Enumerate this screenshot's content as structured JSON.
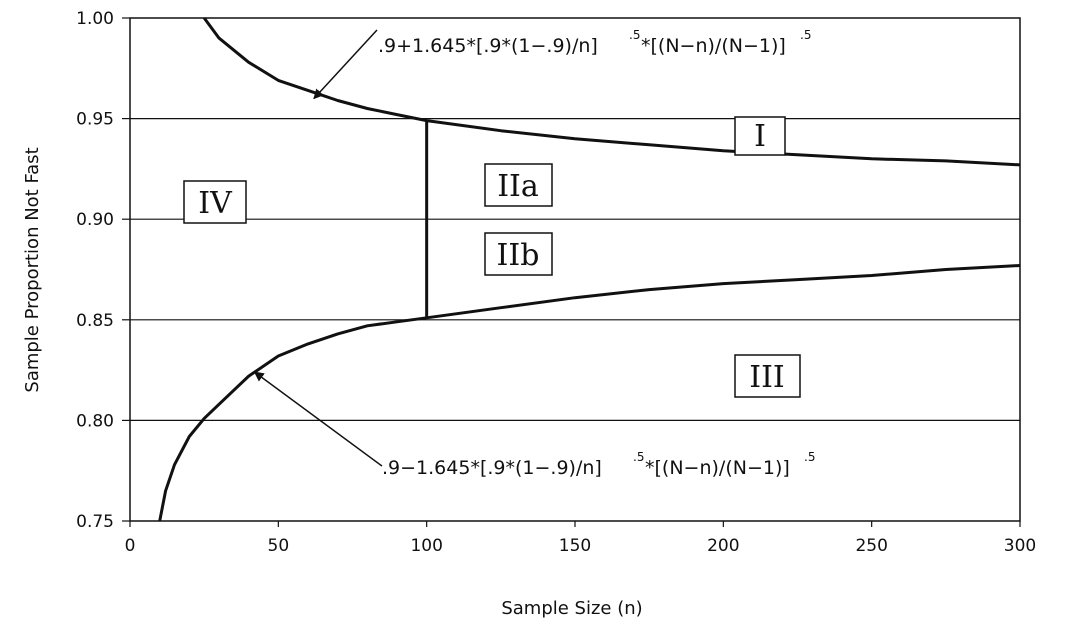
{
  "chart_data": {
    "type": "line",
    "title": "",
    "xlabel": "Sample Size (n)",
    "ylabel": "Sample Proportion Not Fast",
    "xlim": [
      0,
      300
    ],
    "ylim": [
      0.75,
      1.0
    ],
    "xticks": [
      0,
      50,
      100,
      150,
      200,
      250,
      300
    ],
    "xtick_labels": [
      "0",
      "50",
      "100",
      "150",
      "200",
      "250",
      "300"
    ],
    "yticks": [
      0.75,
      0.8,
      0.85,
      0.9,
      0.95,
      1.0
    ],
    "ytick_labels": [
      "0.75",
      "0.80",
      "0.85",
      "0.90",
      "0.95",
      "1.00"
    ],
    "horizontal_gridlines": [
      0.8,
      0.85,
      0.9,
      0.95
    ],
    "series": [
      {
        "x": [
          25,
          30,
          40,
          50,
          60,
          70,
          80,
          90,
          100,
          125,
          150,
          175,
          200,
          225,
          250,
          275,
          300
        ],
        "y": [
          1.0,
          0.99,
          0.978,
          0.969,
          0.964,
          0.959,
          0.955,
          0.952,
          0.949,
          0.944,
          0.94,
          0.937,
          0.934,
          0.932,
          0.93,
          0.929,
          0.927
        ]
      },
      {
        "x": [
          10,
          12,
          15,
          20,
          25,
          30,
          40,
          50,
          60,
          70,
          80,
          90,
          100,
          125,
          150,
          175,
          200,
          225,
          250,
          275,
          300
        ],
        "y": [
          0.75,
          0.765,
          0.778,
          0.792,
          0.801,
          0.808,
          0.822,
          0.832,
          0.838,
          0.843,
          0.847,
          0.849,
          0.851,
          0.856,
          0.861,
          0.865,
          0.868,
          0.87,
          0.872,
          0.875,
          0.877
        ]
      }
    ],
    "vertical_segment": {
      "x": 100,
      "y_from": 0.851,
      "y_to": 0.949
    },
    "annotations": {
      "upper": {
        "text": ".9+1.645*[.9*(1−.9)/n]",
        "sup1": ".5",
        "text2": "*[(N−n)/(N−1)]",
        "sup2": ".5",
        "arrow_to": [
          62,
          0.96
        ]
      },
      "lower": {
        "text": ".9−1.645*[.9*(1−.9)/n]",
        "sup1": ".5",
        "text2": "*[(N−n)/(N−1)]",
        "sup2": ".5",
        "arrow_to": [
          42,
          0.824
        ]
      }
    },
    "regions": [
      {
        "label": "I"
      },
      {
        "label": "IIa"
      },
      {
        "label": "IIb"
      },
      {
        "label": "III"
      },
      {
        "label": "IV"
      }
    ]
  }
}
